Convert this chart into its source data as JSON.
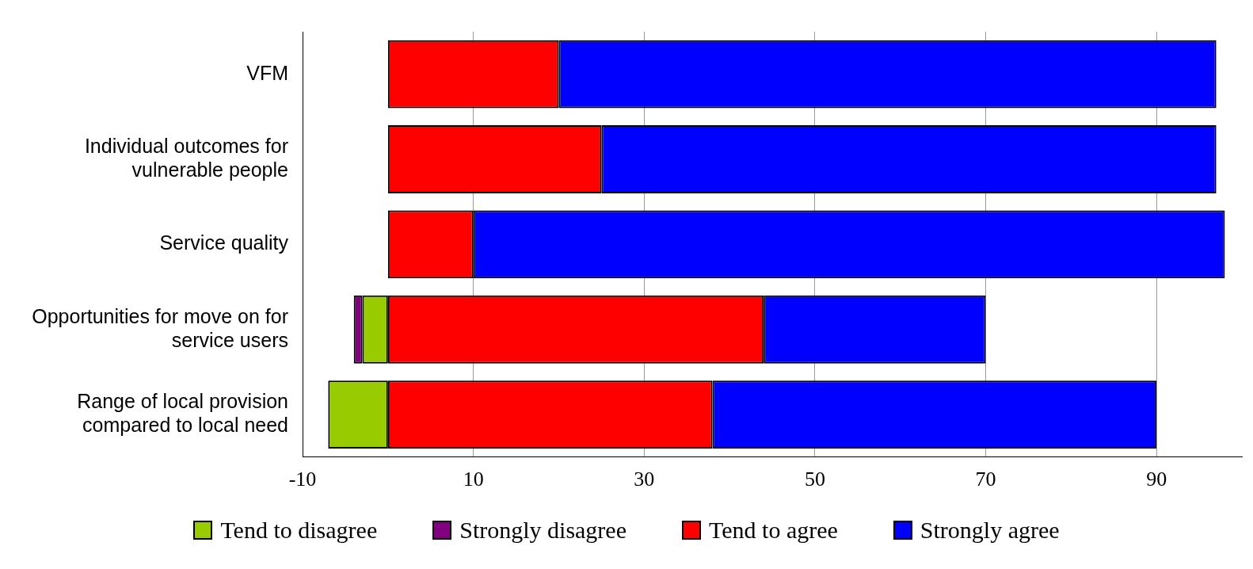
{
  "chart_data": {
    "type": "bar",
    "orientation": "horizontal",
    "stacked": true,
    "categories": [
      "VFM",
      "Individual outcomes for vulnerable people",
      "Service quality",
      "Opportunities for move on for service users",
      "Range of local provision compared to local need"
    ],
    "series": [
      {
        "name": "Tend to disagree",
        "color": "#99cc00",
        "values": [
          0,
          0,
          0,
          -3,
          -7
        ]
      },
      {
        "name": "Strongly disagree",
        "color": "#800080",
        "values": [
          0,
          0,
          0,
          -1,
          0
        ]
      },
      {
        "name": "Tend to agree",
        "color": "#ff0000",
        "values": [
          20,
          25,
          10,
          44,
          38
        ]
      },
      {
        "name": "Strongly agree",
        "color": "#0000ff",
        "values": [
          77,
          72,
          88,
          26,
          52
        ]
      }
    ],
    "xlim": [
      -10,
      100
    ],
    "xticks": [
      -10,
      10,
      30,
      50,
      70,
      90
    ],
    "grid": "x",
    "legend": "bottom"
  }
}
